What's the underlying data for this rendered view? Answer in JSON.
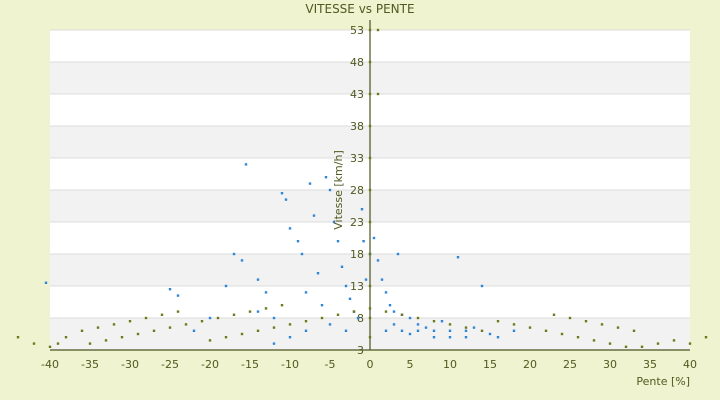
{
  "chart_data": {
    "type": "scatter",
    "title": "VITESSE vs PENTE",
    "xlabel": "Pente [%]",
    "ylabel": "Vitesse [km/h]",
    "xlim": [
      -40,
      40
    ],
    "ylim": [
      3,
      53
    ],
    "x_ticks": [
      -40,
      -35,
      -30,
      -25,
      -20,
      -15,
      -10,
      -5,
      0,
      5,
      10,
      15,
      20,
      25,
      30,
      35,
      40
    ],
    "y_ticks": [
      3,
      8,
      13,
      18,
      23,
      28,
      33,
      38,
      43,
      48,
      53
    ],
    "grid": true,
    "legend": "none",
    "colors": {
      "background": "#eff3cf",
      "plot_area": "#ffffff",
      "band": "#f2f2f2",
      "text": "#4e5a1f",
      "axis": "#4b5320",
      "series_blue": "#2e86d6",
      "series_olive": "#6b7a1a"
    },
    "series": [
      {
        "color": "#2e86d6",
        "points": [
          [
            -40.5,
            13.5
          ],
          [
            -25,
            12.5
          ],
          [
            -24,
            11.5
          ],
          [
            -17,
            18
          ],
          [
            -16,
            17
          ],
          [
            -15.5,
            32
          ],
          [
            -14,
            14
          ],
          [
            -13,
            12
          ],
          [
            -12,
            8
          ],
          [
            -11,
            27.5
          ],
          [
            -10.5,
            26.5
          ],
          [
            -10,
            22
          ],
          [
            -9,
            20
          ],
          [
            -8.5,
            18
          ],
          [
            -8,
            12
          ],
          [
            -7.5,
            29
          ],
          [
            -7,
            24
          ],
          [
            -6.5,
            15
          ],
          [
            -6,
            10
          ],
          [
            -5.5,
            30
          ],
          [
            -5,
            28
          ],
          [
            -4.5,
            23
          ],
          [
            -4,
            20
          ],
          [
            -3.5,
            16
          ],
          [
            -3,
            13
          ],
          [
            -2.5,
            11
          ],
          [
            -2,
            9
          ],
          [
            -1.5,
            8
          ],
          [
            -1,
            25
          ],
          [
            -0.8,
            20
          ],
          [
            -0.5,
            14
          ],
          [
            0,
            18
          ],
          [
            0.5,
            20.5
          ],
          [
            1,
            17
          ],
          [
            1.5,
            14
          ],
          [
            2,
            12
          ],
          [
            2.5,
            10
          ],
          [
            3,
            9
          ],
          [
            3.5,
            18
          ],
          [
            4,
            8.5
          ],
          [
            5,
            8
          ],
          [
            6,
            7
          ],
          [
            7,
            6.5
          ],
          [
            8,
            6
          ],
          [
            9,
            7.5
          ],
          [
            10,
            6
          ],
          [
            11,
            17.5
          ],
          [
            12,
            5
          ],
          [
            13,
            6.5
          ],
          [
            14,
            13
          ],
          [
            15,
            5.5
          ],
          [
            -3,
            6
          ],
          [
            -5,
            7
          ],
          [
            -8,
            6
          ],
          [
            -10,
            5
          ],
          [
            -12,
            4
          ],
          [
            -14,
            9
          ],
          [
            -18,
            13
          ],
          [
            -20,
            8
          ],
          [
            -22,
            6
          ],
          [
            2,
            6
          ],
          [
            3,
            7
          ],
          [
            4,
            6
          ],
          [
            5,
            5.5
          ],
          [
            6,
            6
          ],
          [
            8,
            5
          ],
          [
            10,
            5
          ],
          [
            12,
            6
          ],
          [
            16,
            5
          ],
          [
            18,
            6
          ]
        ]
      },
      {
        "color": "#6b7a1a",
        "points": [
          [
            -44,
            5
          ],
          [
            -42,
            4
          ],
          [
            -40,
            3.5
          ],
          [
            -39,
            4
          ],
          [
            -38,
            5
          ],
          [
            -36,
            6
          ],
          [
            -34,
            6.5
          ],
          [
            -32,
            7
          ],
          [
            -30,
            7.5
          ],
          [
            -28,
            8
          ],
          [
            -26,
            8.5
          ],
          [
            -24,
            9
          ],
          [
            -35,
            4
          ],
          [
            -33,
            4.5
          ],
          [
            -31,
            5
          ],
          [
            -29,
            5.5
          ],
          [
            -27,
            6
          ],
          [
            -25,
            6.5
          ],
          [
            -23,
            7
          ],
          [
            -21,
            7.5
          ],
          [
            -19,
            8
          ],
          [
            -17,
            8.5
          ],
          [
            -15,
            9
          ],
          [
            -13,
            9.5
          ],
          [
            -11,
            10
          ],
          [
            -20,
            4.5
          ],
          [
            -18,
            5
          ],
          [
            -16,
            5.5
          ],
          [
            -14,
            6
          ],
          [
            -12,
            6.5
          ],
          [
            -10,
            7
          ],
          [
            -8,
            7.5
          ],
          [
            -6,
            8
          ],
          [
            -4,
            8.5
          ],
          [
            -2,
            9
          ],
          [
            0,
            9.5
          ],
          [
            0,
            53
          ],
          [
            0,
            48
          ],
          [
            0,
            43
          ],
          [
            0,
            38
          ],
          [
            0,
            33
          ],
          [
            0,
            28
          ],
          [
            0,
            23
          ],
          [
            0,
            18
          ],
          [
            0,
            13
          ],
          [
            0,
            8
          ],
          [
            0,
            5
          ],
          [
            1,
            53
          ],
          [
            1,
            43
          ],
          [
            2,
            9
          ],
          [
            4,
            8.5
          ],
          [
            6,
            8
          ],
          [
            8,
            7.5
          ],
          [
            10,
            7
          ],
          [
            12,
            6.5
          ],
          [
            14,
            6
          ],
          [
            16,
            7.5
          ],
          [
            18,
            7
          ],
          [
            20,
            6.5
          ],
          [
            22,
            6
          ],
          [
            24,
            5.5
          ],
          [
            26,
            5
          ],
          [
            28,
            4.5
          ],
          [
            30,
            4
          ],
          [
            32,
            3.5
          ],
          [
            34,
            3.5
          ],
          [
            36,
            4
          ],
          [
            38,
            4.5
          ],
          [
            40,
            4
          ],
          [
            42,
            5
          ],
          [
            44,
            5
          ],
          [
            23,
            8.5
          ],
          [
            25,
            8
          ],
          [
            27,
            7.5
          ],
          [
            29,
            7
          ],
          [
            31,
            6.5
          ],
          [
            33,
            6
          ]
        ]
      }
    ]
  }
}
